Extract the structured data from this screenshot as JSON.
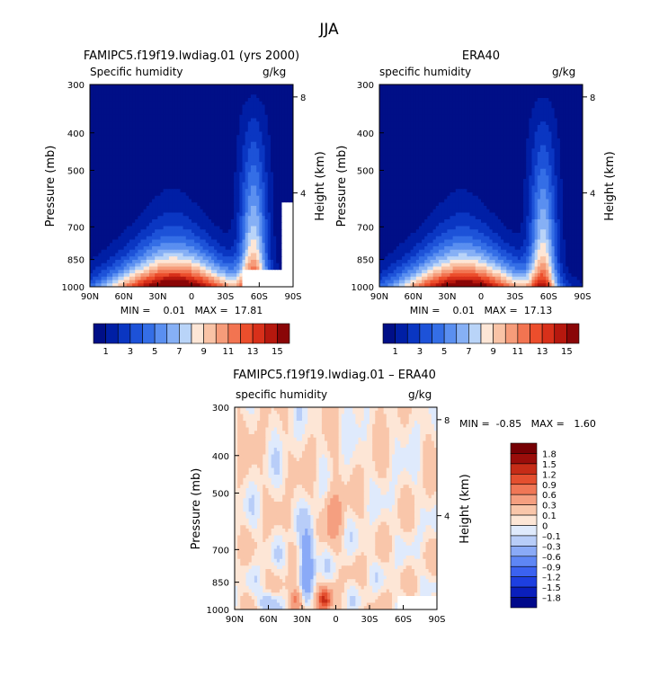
{
  "title": "JJA",
  "chart_data": [
    {
      "type": "heatmap",
      "title": "FAMIPC5.f19f19.lwdiag.01 (yrs 2000)",
      "subtitle_left": "Specific humidity",
      "subtitle_right": "g/kg",
      "ylabel": "Pressure (mb)",
      "ylabel_right": "Height (km)",
      "xticks": [
        "90N",
        "60N",
        "30N",
        "0",
        "30S",
        "60S",
        "90S"
      ],
      "yticks": [
        "300",
        "400",
        "500",
        "700",
        "850",
        "1000"
      ],
      "yticks_right": [
        "8",
        "4"
      ],
      "x": [
        90,
        -90
      ],
      "ylim": [
        1000,
        300
      ],
      "stats": "MIN =    0.01   MAX =  17.81",
      "min": 0.01,
      "max": 17.81,
      "peak_latitude": 15,
      "missing_region": "below surface near 60S-90S",
      "colorbar_levels": [
        1,
        2,
        3,
        4,
        5,
        6,
        7,
        8,
        9,
        10,
        11,
        12,
        13,
        14,
        15,
        16
      ],
      "colorbar_labels": [
        "1",
        "3",
        "5",
        "7",
        "9",
        "11",
        "13",
        "15"
      ]
    },
    {
      "type": "heatmap",
      "title": "ERA40",
      "subtitle_left": "specific humidity",
      "subtitle_right": "g/kg",
      "ylabel": "Pressure (mb)",
      "ylabel_right": "Height (km)",
      "xticks": [
        "90N",
        "60N",
        "30N",
        "0",
        "30S",
        "60S",
        "90S"
      ],
      "yticks": [
        "300",
        "400",
        "500",
        "700",
        "850",
        "1000"
      ],
      "yticks_right": [
        "8",
        "4"
      ],
      "x": [
        90,
        -90
      ],
      "ylim": [
        1000,
        300
      ],
      "stats": "MIN =    0.01   MAX =  17.13",
      "min": 0.01,
      "max": 17.13,
      "peak_latitude": 15,
      "colorbar_levels": [
        1,
        2,
        3,
        4,
        5,
        6,
        7,
        8,
        9,
        10,
        11,
        12,
        13,
        14,
        15,
        16
      ],
      "colorbar_labels": [
        "1",
        "3",
        "5",
        "7",
        "9",
        "11",
        "13",
        "15"
      ]
    },
    {
      "type": "heatmap",
      "title": "FAMIPC5.f19f19.lwdiag.01 – ERA40",
      "subtitle_left": "specific humidity",
      "subtitle_right": "g/kg",
      "ylabel": "Pressure (mb)",
      "ylabel_right": "Height (km)",
      "xticks": [
        "90N",
        "60N",
        "30N",
        "0",
        "30S",
        "60S",
        "90S"
      ],
      "yticks": [
        "300",
        "400",
        "500",
        "700",
        "850",
        "1000"
      ],
      "yticks_right": [
        "8",
        "4"
      ],
      "x": [
        90,
        -90
      ],
      "ylim": [
        1000,
        300
      ],
      "stats": "MIN =  -0.85   MAX =   1.60",
      "min": -0.85,
      "max": 1.6,
      "colorbar_levels": [
        -1.8,
        -1.5,
        -1.2,
        -0.9,
        -0.6,
        -0.3,
        -0.1,
        0,
        0.1,
        0.3,
        0.6,
        0.9,
        1.2,
        1.5,
        1.8
      ],
      "colorbar_labels": [
        "1.8",
        "1.5",
        "1.2",
        "0.9",
        "0.6",
        "0.3",
        "0.1",
        "0",
        "–0.1",
        "–0.3",
        "–0.6",
        "–0.9",
        "–1.2",
        "–1.5",
        "–1.8"
      ]
    }
  ],
  "colors": {
    "seq": [
      "#000f87",
      "#001fa5",
      "#0a36c2",
      "#1d52d8",
      "#346ee6",
      "#5a8ff0",
      "#86b0f5",
      "#b9d4f8",
      "#fde6d6",
      "#f9c3a6",
      "#f69c7a",
      "#f27451",
      "#ec4e2c",
      "#d8301a",
      "#b6180e",
      "#8a0607"
    ],
    "div": [
      "#00098a",
      "#0a1fbc",
      "#1d3fe0",
      "#3b62f0",
      "#5e86f5",
      "#8aaaf7",
      "#b8cdf8",
      "#dfeafc",
      "#fde6d6",
      "#f9c6aa",
      "#f59f80",
      "#f07756",
      "#e44f2f",
      "#c62c17",
      "#9a0d0a",
      "#760004"
    ],
    "missing": "#ffffff"
  }
}
